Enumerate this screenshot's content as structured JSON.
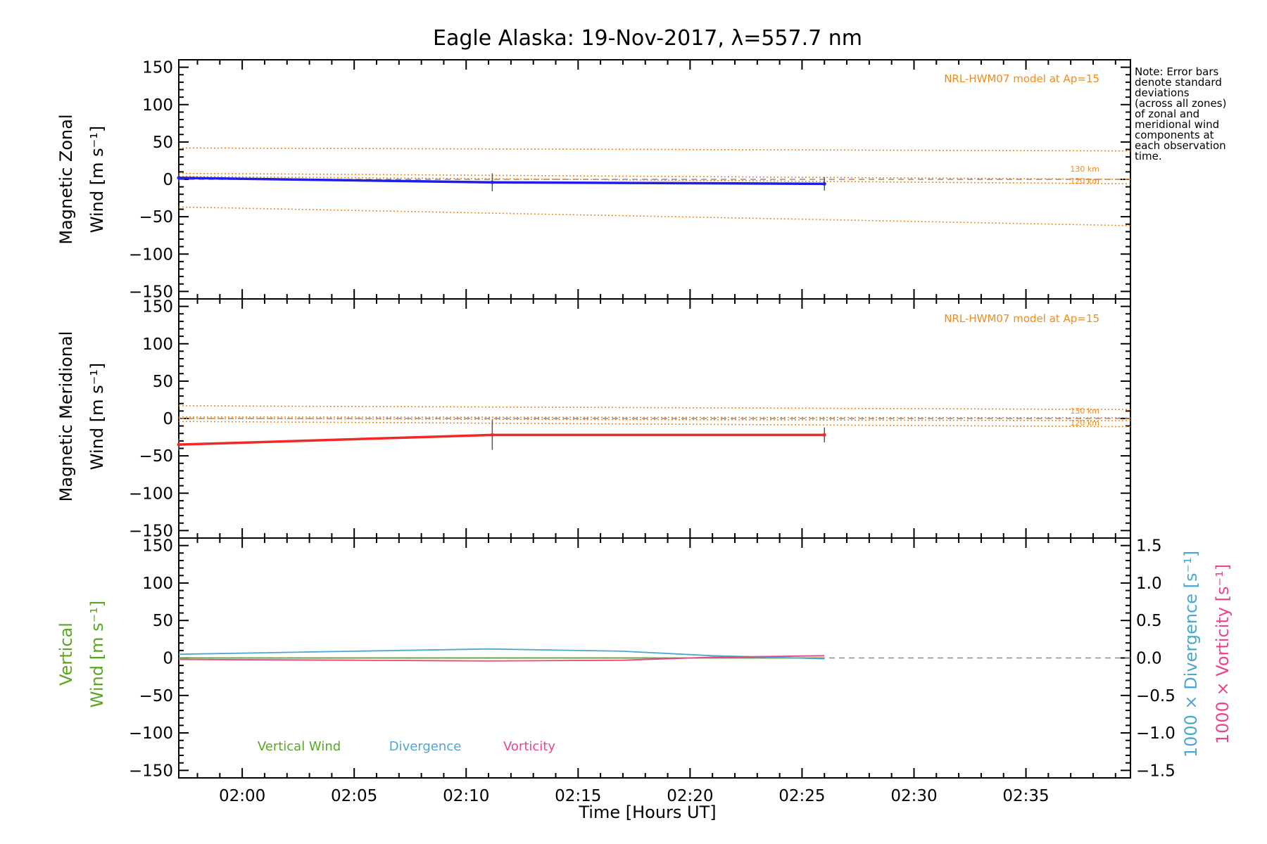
{
  "title": "Eagle Alaska: 19-Nov-2017, λ=557.7 nm",
  "x_axis_label": "Time [Hours UT]",
  "note_lines": [
    "Note: Error bars",
    "denote standard",
    "deviations",
    "(across all zones)",
    "of zonal and",
    "meridional wind",
    "components at",
    "each observation",
    "time."
  ],
  "colors": {
    "zonal": "#1f1fe8",
    "meridional": "#f02828",
    "vertical": "#5aa620",
    "divergence": "#4aa8d0",
    "vorticity": "#e8458c",
    "model": "#f08a1e",
    "reference": "#8a8aa8"
  },
  "chart_data": [
    {
      "type": "line",
      "panel": "zonal",
      "ylabel_lines": [
        "Magnetic Zonal",
        "Wind [m s⁻¹]"
      ],
      "ylim": [
        -160,
        160
      ],
      "yticks": [
        150,
        100,
        50,
        0,
        -50,
        -100,
        -150
      ],
      "xlim": [
        "01:57:10",
        "02:39:40"
      ],
      "xtick_labels": [
        "02:00",
        "02:05",
        "02:10",
        "02:15",
        "02:20",
        "02:25",
        "02:30",
        "02:35"
      ],
      "model_label": "NRL-HWM07 model at Ap=15",
      "altitude_labels": [
        "130 km",
        "120 km"
      ],
      "series": [
        {
          "role": "observed",
          "x": [
            "01:57:10",
            "02:11:10",
            "02:26:00"
          ],
          "y": [
            2,
            -4,
            -6
          ],
          "err": [
            6,
            12,
            9
          ]
        },
        {
          "role": "model-upper",
          "x": [
            "01:57:10",
            "02:39:40"
          ],
          "y": [
            42,
            38
          ]
        },
        {
          "role": "model-lower",
          "x": [
            "01:57:10",
            "02:39:40"
          ],
          "y": [
            -37,
            -62
          ]
        },
        {
          "role": "model-130km",
          "x": [
            "01:57:10",
            "02:39:40"
          ],
          "y": [
            8,
            0
          ]
        },
        {
          "role": "model-120km",
          "x": [
            "01:57:10",
            "02:39:40"
          ],
          "y": [
            4,
            -6
          ]
        }
      ]
    },
    {
      "type": "line",
      "panel": "meridional",
      "ylabel_lines": [
        "Magnetic Meridional",
        "Wind [m s⁻¹]"
      ],
      "ylim": [
        -160,
        160
      ],
      "yticks": [
        150,
        100,
        50,
        0,
        -50,
        -100,
        -150
      ],
      "xlim": [
        "01:57:10",
        "02:39:40"
      ],
      "model_label": "NRL-HWM07 model at Ap=15",
      "altitude_labels": [
        "130 km",
        "120 km"
      ],
      "series": [
        {
          "role": "observed",
          "x": [
            "01:57:10",
            "02:11:10",
            "02:26:00"
          ],
          "y": [
            -35,
            -22,
            -22
          ],
          "err": [
            8,
            20,
            10
          ]
        },
        {
          "role": "model-upper",
          "x": [
            "01:57:10",
            "02:39:40"
          ],
          "y": [
            17,
            12
          ]
        },
        {
          "role": "model-lower",
          "x": [
            "01:57:10",
            "02:39:40"
          ],
          "y": [
            -4,
            -11
          ]
        },
        {
          "role": "model-130km",
          "x": [
            "01:57:10",
            "02:39:40"
          ],
          "y": [
            2,
            1
          ]
        },
        {
          "role": "model-120km",
          "x": [
            "01:57:10",
            "02:39:40"
          ],
          "y": [
            0,
            -3
          ]
        }
      ]
    },
    {
      "type": "line",
      "panel": "vertical",
      "ylabel_lines": [
        "Vertical",
        "Wind [m s⁻¹]"
      ],
      "ylim": [
        -160,
        160
      ],
      "yticks": [
        150,
        100,
        50,
        0,
        -50,
        -100,
        -150
      ],
      "y2lim": [
        -1.6,
        1.6
      ],
      "y2ticks": [
        1.5,
        1.0,
        0.5,
        0.0,
        -0.5,
        -1.0,
        -1.5
      ],
      "y2label_divergence": "1000 × Divergence [s⁻¹]",
      "y2label_vorticity": "1000 × Vorticity [s⁻¹]",
      "xlim": [
        "01:57:10",
        "02:39:40"
      ],
      "xtick_labels": [
        "02:00",
        "02:05",
        "02:10",
        "02:15",
        "02:20",
        "02:25",
        "02:30",
        "02:35"
      ],
      "xlabel": "Time [Hours UT]",
      "legend": [
        "Vertical Wind",
        "Divergence",
        "Vorticity"
      ],
      "series": [
        {
          "name": "Vertical Wind",
          "axis": "left",
          "x": [
            "01:57:10",
            "02:26:00"
          ],
          "y": [
            0,
            0
          ]
        },
        {
          "name": "Divergence",
          "axis": "right",
          "x": [
            "01:57:10",
            "02:05:00",
            "02:11:00",
            "02:17:00",
            "02:21:00",
            "02:26:00"
          ],
          "y": [
            0.05,
            0.09,
            0.12,
            0.09,
            0.03,
            -0.01
          ]
        },
        {
          "name": "Vorticity",
          "axis": "right",
          "x": [
            "01:57:10",
            "02:05:00",
            "02:11:00",
            "02:17:00",
            "02:21:00",
            "02:26:00"
          ],
          "y": [
            -0.02,
            -0.03,
            -0.04,
            -0.03,
            0.01,
            0.03
          ]
        }
      ]
    }
  ]
}
